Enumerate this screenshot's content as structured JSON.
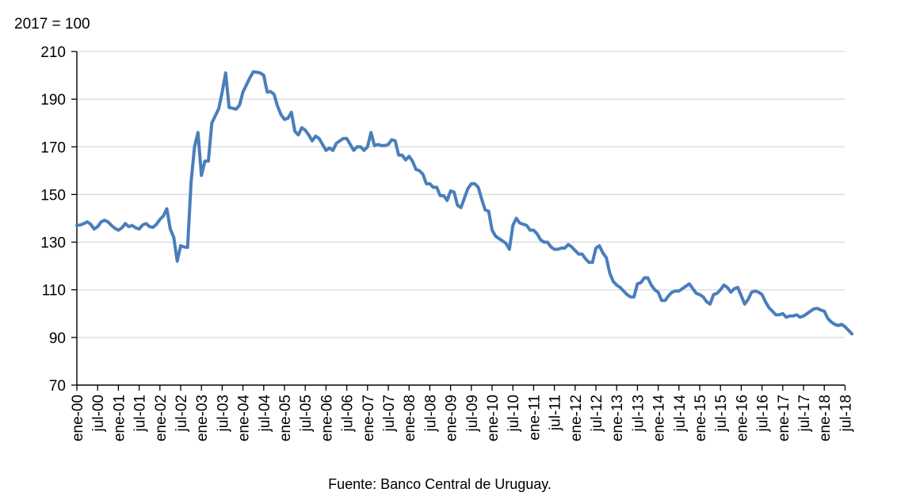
{
  "chart_data": {
    "type": "line",
    "unit_label": "2017 = 100",
    "source": "Fuente: Banco Central de Uruguay.",
    "ylim": [
      70,
      210
    ],
    "yticks": [
      70,
      90,
      110,
      130,
      150,
      170,
      190,
      210
    ],
    "grid": true,
    "legend": "none",
    "line_color": "#4a7ebb",
    "xticks": [
      "ene-00",
      "jul-00",
      "ene-01",
      "jul-01",
      "ene-02",
      "jul-02",
      "ene-03",
      "jul-03",
      "ene-04",
      "jul-04",
      "ene-05",
      "jul-05",
      "ene-06",
      "jul-06",
      "ene-07",
      "jul-07",
      "ene-08",
      "jul-08",
      "ene-09",
      "jul-09",
      "ene-10",
      "jul-10",
      "ene-11",
      "jul-11",
      "ene-12",
      "jul-12",
      "ene-13",
      "jul-13",
      "ene-14",
      "jul-14",
      "ene-15",
      "jul-15",
      "ene-16",
      "jul-16",
      "ene-17",
      "jul-17",
      "ene-18",
      "jul-18"
    ],
    "series": [
      {
        "values": [
          137.0,
          137.2,
          137.8,
          138.5,
          137.5,
          135.5,
          136.5,
          138.5,
          139.2,
          138.5,
          137.0,
          135.8,
          135.0,
          136.0,
          137.8,
          136.5,
          137.0,
          136.0,
          135.5,
          137.2,
          137.8,
          136.5,
          136.2,
          137.5,
          139.5,
          141.0,
          144.0,
          135.5,
          132.0,
          122.0,
          128.5,
          128.0,
          127.8,
          155.0,
          170.0,
          176.0,
          158.0,
          164.0,
          164.0,
          180.0,
          183.0,
          186.0,
          193.0,
          201.0,
          186.5,
          186.2,
          185.8,
          187.5,
          193.0,
          196.0,
          199.0,
          201.5,
          201.3,
          201.0,
          200.0,
          193.0,
          193.2,
          192.0,
          187.0,
          183.5,
          181.5,
          182.0,
          184.5,
          176.5,
          175.0,
          178.0,
          177.0,
          175.0,
          172.5,
          174.5,
          173.5,
          171.0,
          168.5,
          169.5,
          168.5,
          171.5,
          172.5,
          173.5,
          173.5,
          171.0,
          168.5,
          170.0,
          170.0,
          168.5,
          170.0,
          176.0,
          170.5,
          171.0,
          170.5,
          170.5,
          171.0,
          173.0,
          172.5,
          166.5,
          166.5,
          164.5,
          166.0,
          164.0,
          160.5,
          160.0,
          158.5,
          154.5,
          154.5,
          153.0,
          153.0,
          149.5,
          149.5,
          147.5,
          151.5,
          151.0,
          145.5,
          144.5,
          148.5,
          152.5,
          154.5,
          154.5,
          153.0,
          148.0,
          143.5,
          143.0,
          135.0,
          132.5,
          131.5,
          130.5,
          129.5,
          127.0,
          137.0,
          140.0,
          138.0,
          137.5,
          137.0,
          135.0,
          135.0,
          133.5,
          131.0,
          130.0,
          130.0,
          128.0,
          127.0,
          127.0,
          127.5,
          127.5,
          129.0,
          128.0,
          126.5,
          125.0,
          125.0,
          123.0,
          121.5,
          121.5,
          127.5,
          128.5,
          125.5,
          123.5,
          117.0,
          113.5,
          112.0,
          111.0,
          109.5,
          108.0,
          107.0,
          107.0,
          112.5,
          113.0,
          115.0,
          115.0,
          112.0,
          110.0,
          109.0,
          105.5,
          105.5,
          107.5,
          109.0,
          109.5,
          109.5,
          110.5,
          111.5,
          112.5,
          110.5,
          108.5,
          108.0,
          107.0,
          105.0,
          104.0,
          108.0,
          108.5,
          110.0,
          112.0,
          111.0,
          109.0,
          110.5,
          111.0,
          107.5,
          104.0,
          106.0,
          109.0,
          109.5,
          109.0,
          108.0,
          105.0,
          102.5,
          101.0,
          99.5,
          99.5,
          100.0,
          98.5,
          99.0,
          99.0,
          99.5,
          98.5,
          99.0,
          100.0,
          101.0,
          102.0,
          102.2,
          101.5,
          101.0,
          98.0,
          96.5,
          95.5,
          95.0,
          95.5,
          94.5,
          93.0,
          91.5
        ]
      }
    ]
  }
}
